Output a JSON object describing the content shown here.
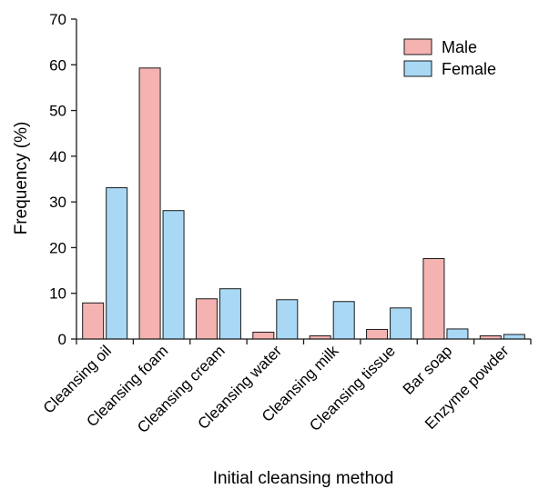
{
  "chart_data": {
    "type": "bar",
    "categories": [
      "Cleansing oil",
      "Cleansing foam",
      "Cleansing cream",
      "Cleansing water",
      "Cleansing milk",
      "Cleansing tissue",
      "Bar soap",
      "Enzyme powder"
    ],
    "series": [
      {
        "name": "Male",
        "values": [
          7.9,
          59.3,
          8.8,
          1.5,
          0.7,
          2.1,
          17.6,
          0.7
        ]
      },
      {
        "name": "Female",
        "values": [
          33.1,
          28.1,
          11.0,
          8.6,
          8.2,
          6.8,
          2.2,
          1.0
        ]
      }
    ],
    "title": "",
    "xlabel": "Initial cleansing method",
    "ylabel": "Frequency (%)",
    "ylim": [
      0,
      70
    ],
    "yticks": [
      0,
      10,
      20,
      30,
      40,
      50,
      60,
      70
    ],
    "grid": false,
    "legend_position": "top-right",
    "colors": {
      "Male": "#f4b3b0",
      "Female": "#a8d8f4"
    }
  }
}
